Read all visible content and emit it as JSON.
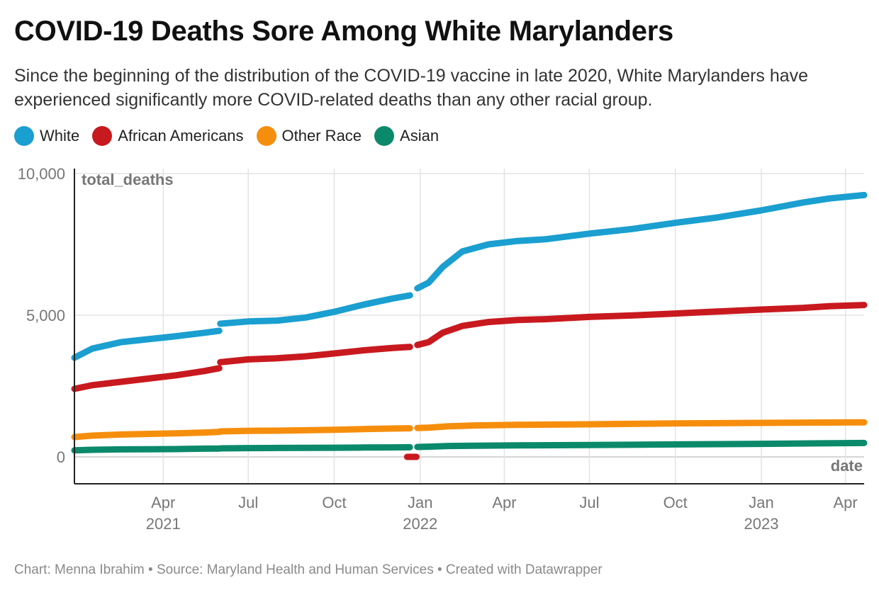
{
  "title": "COVID-19 Deaths Sore Among White Marylanders",
  "subtitle": "Since the beginning of the distribution of the COVID-19 vaccine in late 2020, White Marylanders have experienced significantly more COVID-related deaths than any other racial group.",
  "footer": "Chart: Menna Ibrahim • Source: Maryland Health and Human Services • Created with Datawrapper",
  "chart_data": {
    "type": "line",
    "xlabel": "date",
    "ylabel": "total_deaths",
    "x_range": [
      "2020-12-27",
      "2023-04-21"
    ],
    "ylim": [
      0,
      10000
    ],
    "y_ticks": [
      {
        "value": 0,
        "label": "0"
      },
      {
        "value": 5000,
        "label": "5,000"
      },
      {
        "value": 10000,
        "label": "10,000"
      }
    ],
    "x_ticks": [
      {
        "date": "2021-04-01",
        "label": "Apr",
        "year": "2021"
      },
      {
        "date": "2021-07-01",
        "label": "Jul",
        "year": ""
      },
      {
        "date": "2021-10-01",
        "label": "Oct",
        "year": ""
      },
      {
        "date": "2022-01-01",
        "label": "Jan",
        "year": "2022"
      },
      {
        "date": "2022-04-01",
        "label": "Apr",
        "year": ""
      },
      {
        "date": "2022-07-01",
        "label": "Jul",
        "year": ""
      },
      {
        "date": "2022-10-01",
        "label": "Oct",
        "year": ""
      },
      {
        "date": "2023-01-01",
        "label": "Jan",
        "year": "2023"
      },
      {
        "date": "2023-04-01",
        "label": "Apr",
        "year": ""
      }
    ],
    "grid": true,
    "legend_position": "top-left",
    "series": [
      {
        "name": "White",
        "color": "#1a9fd0",
        "segments": [
          [
            [
              "2020-12-27",
              3500
            ],
            [
              "2021-01-15",
              3820
            ],
            [
              "2021-02-15",
              4050
            ],
            [
              "2021-03-15",
              4150
            ],
            [
              "2021-04-15",
              4260
            ],
            [
              "2021-05-15",
              4380
            ],
            [
              "2021-05-31",
              4450
            ]
          ],
          [
            [
              "2021-06-01",
              4700
            ],
            [
              "2021-07-01",
              4780
            ],
            [
              "2021-08-01",
              4810
            ],
            [
              "2021-09-01",
              4920
            ],
            [
              "2021-10-01",
              5120
            ],
            [
              "2021-11-01",
              5370
            ],
            [
              "2021-12-01",
              5580
            ],
            [
              "2021-12-21",
              5700
            ]
          ],
          [
            [
              "2021-12-29",
              5950
            ],
            [
              "2022-01-10",
              6150
            ],
            [
              "2022-01-25",
              6700
            ],
            [
              "2022-02-15",
              7250
            ],
            [
              "2022-03-15",
              7500
            ],
            [
              "2022-04-15",
              7620
            ],
            [
              "2022-05-15",
              7680
            ],
            [
              "2022-07-01",
              7880
            ],
            [
              "2022-08-15",
              8040
            ],
            [
              "2022-10-01",
              8260
            ],
            [
              "2022-11-15",
              8450
            ],
            [
              "2023-01-01",
              8700
            ],
            [
              "2023-02-15",
              8980
            ],
            [
              "2023-03-15",
              9120
            ],
            [
              "2023-04-21",
              9240
            ]
          ]
        ]
      },
      {
        "name": "African Americans",
        "color": "#c8191f",
        "segments": [
          [
            [
              "2020-12-27",
              2400
            ],
            [
              "2021-01-15",
              2530
            ],
            [
              "2021-02-15",
              2650
            ],
            [
              "2021-03-15",
              2760
            ],
            [
              "2021-04-15",
              2880
            ],
            [
              "2021-05-15",
              3030
            ],
            [
              "2021-05-31",
              3130
            ]
          ],
          [
            [
              "2021-06-01",
              3340
            ],
            [
              "2021-07-01",
              3440
            ],
            [
              "2021-08-01",
              3480
            ],
            [
              "2021-09-01",
              3550
            ],
            [
              "2021-10-01",
              3650
            ],
            [
              "2021-11-01",
              3760
            ],
            [
              "2021-12-01",
              3840
            ],
            [
              "2021-12-21",
              3880
            ]
          ],
          [
            [
              "2021-12-18",
              0
            ],
            [
              "2021-12-28",
              0
            ]
          ],
          [
            [
              "2021-12-29",
              3950
            ],
            [
              "2022-01-10",
              4050
            ],
            [
              "2022-01-25",
              4380
            ],
            [
              "2022-02-15",
              4620
            ],
            [
              "2022-03-15",
              4760
            ],
            [
              "2022-04-15",
              4830
            ],
            [
              "2022-05-15",
              4860
            ],
            [
              "2022-07-01",
              4940
            ],
            [
              "2022-08-15",
              4990
            ],
            [
              "2022-10-01",
              5060
            ],
            [
              "2022-11-15",
              5130
            ],
            [
              "2023-01-01",
              5200
            ],
            [
              "2023-02-15",
              5260
            ],
            [
              "2023-03-15",
              5320
            ],
            [
              "2023-04-21",
              5360
            ]
          ]
        ]
      },
      {
        "name": "Other Race",
        "color": "#f68e0d",
        "segments": [
          [
            [
              "2020-12-27",
              700
            ],
            [
              "2021-01-15",
              750
            ],
            [
              "2021-02-15",
              790
            ],
            [
              "2021-03-15",
              810
            ],
            [
              "2021-04-15",
              830
            ],
            [
              "2021-05-15",
              860
            ],
            [
              "2021-05-31",
              880
            ]
          ],
          [
            [
              "2021-06-01",
              900
            ],
            [
              "2021-07-01",
              920
            ],
            [
              "2021-08-01",
              925
            ],
            [
              "2021-09-01",
              940
            ],
            [
              "2021-10-01",
              955
            ],
            [
              "2021-11-01",
              980
            ],
            [
              "2021-12-01",
              1000
            ],
            [
              "2021-12-21",
              1010
            ]
          ],
          [
            [
              "2021-12-29",
              1020
            ],
            [
              "2022-01-10",
              1030
            ],
            [
              "2022-02-01",
              1080
            ],
            [
              "2022-03-01",
              1110
            ],
            [
              "2022-04-15",
              1130
            ],
            [
              "2022-07-01",
              1150
            ],
            [
              "2022-10-01",
              1180
            ],
            [
              "2023-01-01",
              1200
            ],
            [
              "2023-04-21",
              1220
            ]
          ]
        ]
      },
      {
        "name": "Asian",
        "color": "#0b8a6b",
        "segments": [
          [
            [
              "2020-12-27",
              230
            ],
            [
              "2021-01-15",
              250
            ],
            [
              "2021-02-15",
              265
            ],
            [
              "2021-03-15",
              270
            ],
            [
              "2021-04-15",
              275
            ],
            [
              "2021-05-15",
              290
            ],
            [
              "2021-05-31",
              295
            ]
          ],
          [
            [
              "2021-06-01",
              300
            ],
            [
              "2021-07-01",
              310
            ],
            [
              "2021-08-01",
              315
            ],
            [
              "2021-09-01",
              318
            ],
            [
              "2021-10-01",
              322
            ],
            [
              "2021-11-01",
              330
            ],
            [
              "2021-12-01",
              335
            ],
            [
              "2021-12-21",
              340
            ]
          ],
          [
            [
              "2021-12-29",
              350
            ],
            [
              "2022-01-10",
              360
            ],
            [
              "2022-02-01",
              385
            ],
            [
              "2022-03-01",
              395
            ],
            [
              "2022-04-15",
              405
            ],
            [
              "2022-07-01",
              420
            ],
            [
              "2022-10-01",
              440
            ],
            [
              "2023-01-01",
              460
            ],
            [
              "2023-04-21",
              490
            ]
          ]
        ]
      }
    ]
  }
}
